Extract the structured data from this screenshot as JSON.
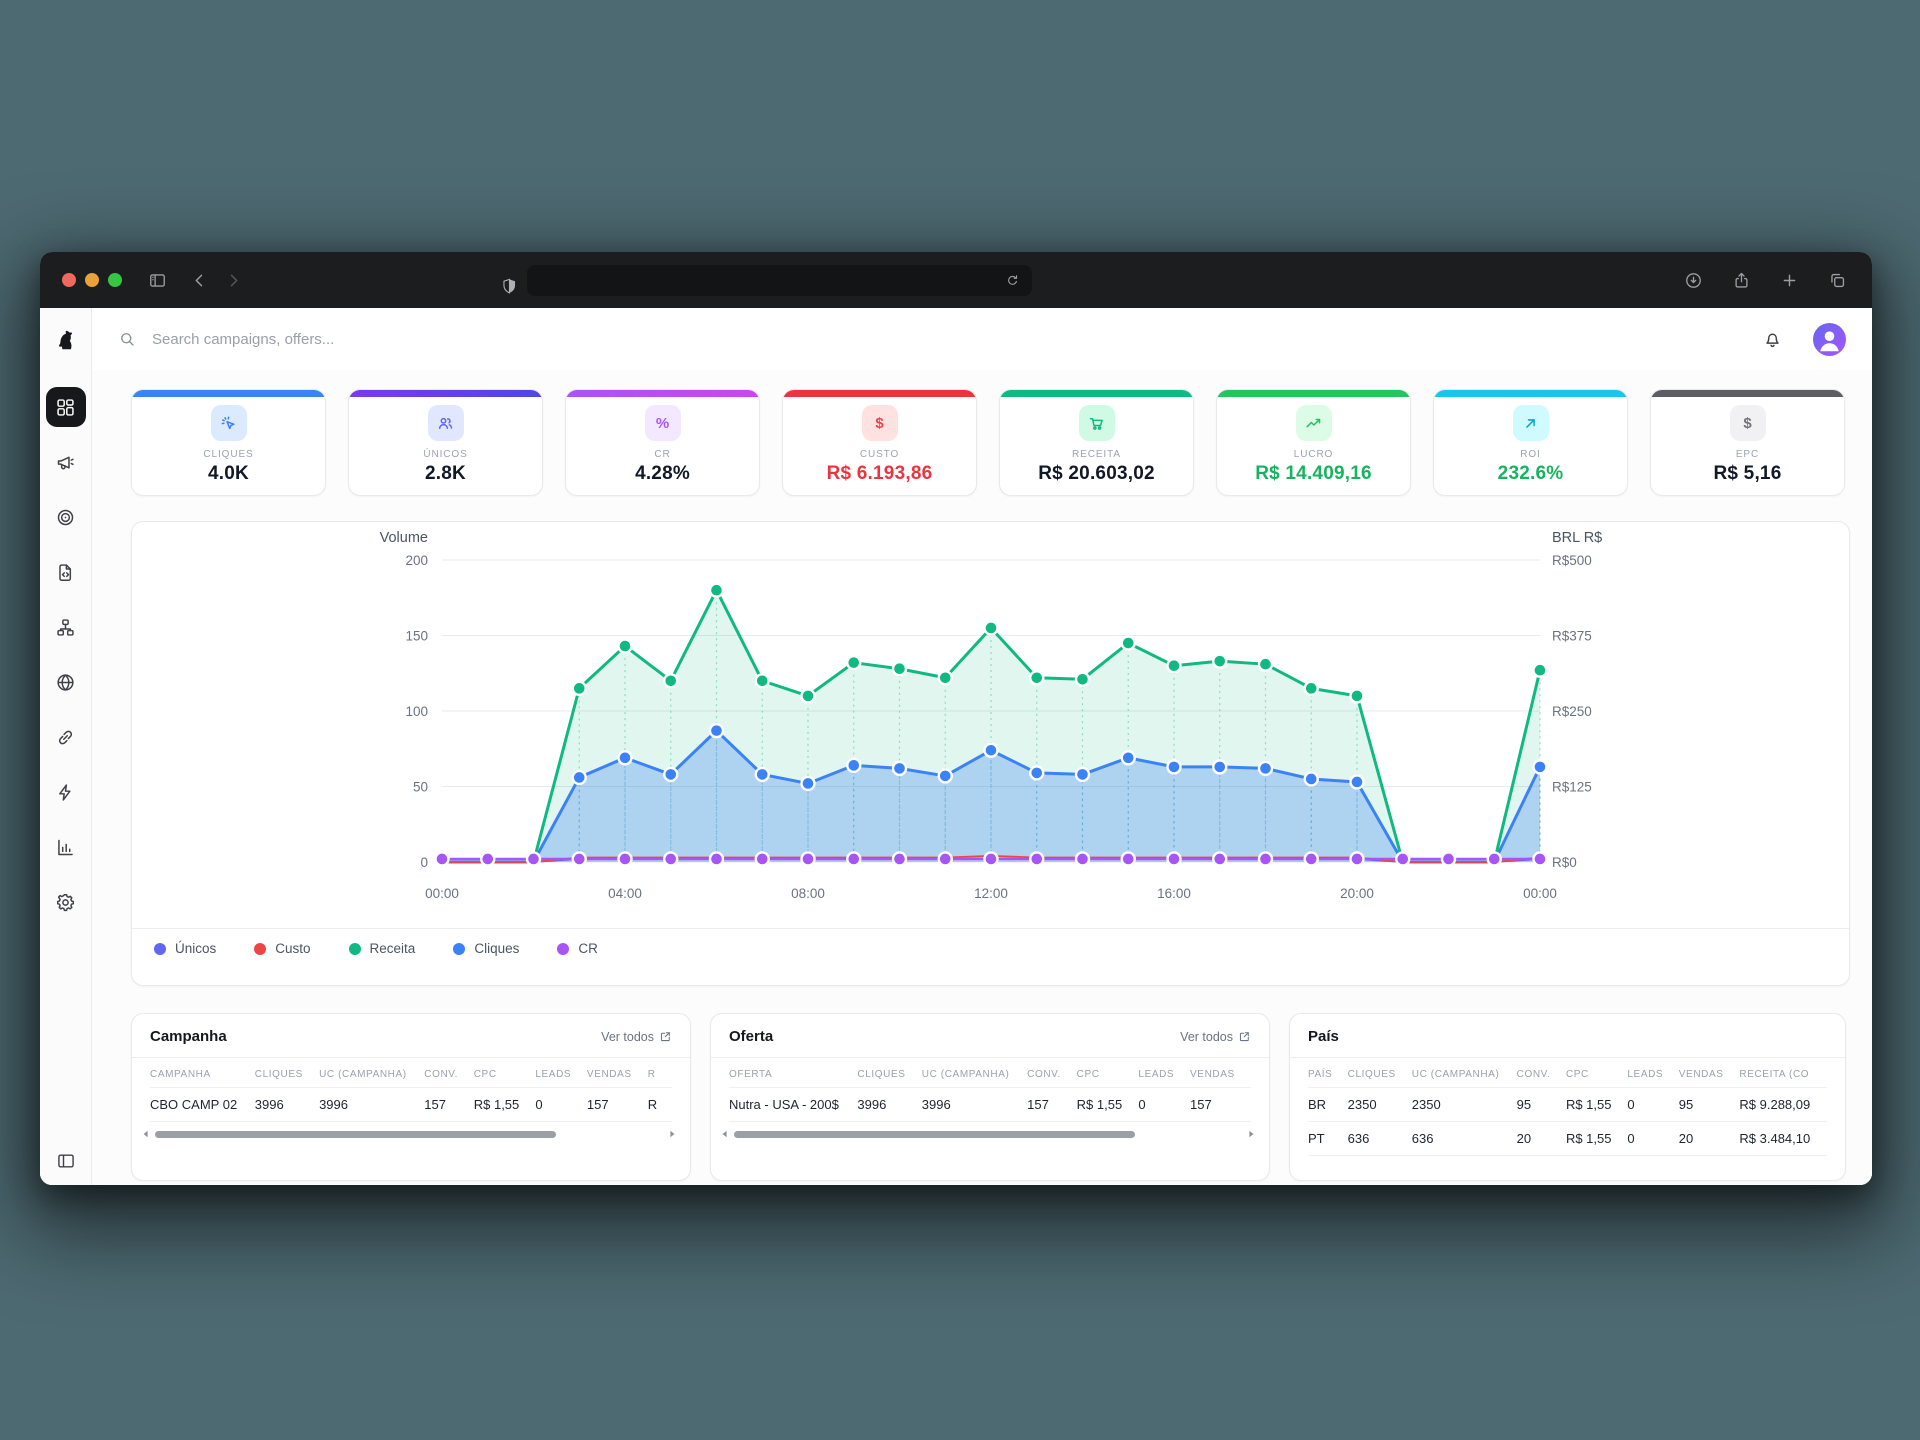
{
  "header": {
    "search_placeholder": "Search campaigns, offers..."
  },
  "sidebar": {
    "items": [
      {
        "id": "dashboard",
        "icon": "grid",
        "active": true
      },
      {
        "id": "campaigns",
        "icon": "megaphone",
        "active": false
      },
      {
        "id": "offers",
        "icon": "target",
        "active": false
      },
      {
        "id": "landers",
        "icon": "file-code",
        "active": false
      },
      {
        "id": "flows",
        "icon": "network",
        "active": false
      },
      {
        "id": "domains",
        "icon": "globe",
        "active": false
      },
      {
        "id": "links",
        "icon": "link",
        "active": false
      },
      {
        "id": "automation",
        "icon": "zap",
        "active": false
      },
      {
        "id": "reports",
        "icon": "bar-chart",
        "active": false
      },
      {
        "id": "settings",
        "icon": "gear",
        "active": false
      }
    ]
  },
  "kpis": [
    {
      "label": "CLIQUES",
      "value": "4.0K",
      "accent": "#3b82f6",
      "accent2": "#3b82f6",
      "tint": "#dbeafe",
      "icon_color": "#3b82f6",
      "icon": "cursor-click",
      "glyph": "",
      "value_color": "#111827"
    },
    {
      "label": "ÚNICOS",
      "value": "2.8K",
      "accent": "#7c3aed",
      "accent2": "#4f46e5",
      "tint": "#e0e7ff",
      "icon_color": "#6366f1",
      "icon": "users",
      "glyph": "",
      "value_color": "#111827"
    },
    {
      "label": "CR",
      "value": "4.28%",
      "accent": "#a855f7",
      "accent2": "#c946ef",
      "tint": "#f3e8ff",
      "icon_color": "#a855f7",
      "icon": "",
      "glyph": "%",
      "value_color": "#111827"
    },
    {
      "label": "CUSTO",
      "value": "R$ 6.193,86",
      "accent": "#ee3340",
      "accent2": "#ee3340",
      "tint": "#fee2e2",
      "icon_color": "#ef4444",
      "icon": "",
      "glyph": "$",
      "value_color": "#ee3340"
    },
    {
      "label": "RECEITA",
      "value": "R$ 20.603,02",
      "accent": "#10b981",
      "accent2": "#10b981",
      "tint": "#d1fae5",
      "icon_color": "#10b981",
      "icon": "cart",
      "glyph": "",
      "value_color": "#111827"
    },
    {
      "label": "LUCRO",
      "value": "R$ 14.409,16",
      "accent": "#22c55e",
      "accent2": "#22c55e",
      "tint": "#dcfce7",
      "icon_color": "#22c55e",
      "icon": "trending-up",
      "glyph": "",
      "value_color": "#17b35f"
    },
    {
      "label": "ROI",
      "value": "232.6%",
      "accent": "#19c6ea",
      "accent2": "#19c6ea",
      "tint": "#cffafe",
      "icon_color": "#0ea5c9",
      "icon": "arrow-up-right",
      "glyph": "",
      "value_color": "#17b35f"
    },
    {
      "label": "EPC",
      "value": "R$ 5,16",
      "accent": "#5d5d65",
      "accent2": "#5d5d65",
      "tint": "#f1f1f3",
      "icon_color": "#73737b",
      "icon": "",
      "glyph": "$",
      "value_color": "#111827"
    }
  ],
  "chart_data": {
    "type": "area",
    "x_labels": [
      "00:00",
      "04:00",
      "08:00",
      "12:00",
      "16:00",
      "20:00",
      "00:00"
    ],
    "x_label_every": 4,
    "left_axis": {
      "title": "Volume",
      "ticks": [
        "0",
        "50",
        "100",
        "150",
        "200"
      ],
      "max": 200
    },
    "right_axis": {
      "title": "BRL R$",
      "ticks": [
        "R$0",
        "R$125",
        "R$250",
        "R$375",
        "R$500"
      ]
    },
    "grid": true,
    "legend_position": "bottom",
    "series": [
      {
        "name": "Únicos",
        "color": "#6366f1",
        "dots": false,
        "values": [
          0,
          0,
          0,
          2,
          2,
          2,
          2,
          2,
          2,
          2,
          2,
          2,
          2,
          2,
          2,
          2,
          2,
          2,
          2,
          2,
          2,
          0,
          0,
          0,
          2
        ]
      },
      {
        "name": "Custo",
        "color": "#ef4444",
        "dots": false,
        "values": [
          0,
          0,
          0,
          3,
          3,
          3,
          3,
          3,
          3,
          3,
          3,
          3,
          4,
          3,
          3,
          3,
          3,
          3,
          3,
          3,
          3,
          0,
          0,
          0,
          3
        ]
      },
      {
        "name": "Receita",
        "color": "#10b981",
        "dots": true,
        "area": "rgba(16,185,129,.13)",
        "values": [
          0,
          0,
          0,
          115,
          143,
          120,
          180,
          120,
          110,
          132,
          128,
          122,
          155,
          122,
          121,
          145,
          130,
          133,
          131,
          115,
          110,
          0,
          0,
          0,
          127
        ]
      },
      {
        "name": "Cliques",
        "color": "#3b82f6",
        "dots": true,
        "area": "rgba(59,130,246,.30)",
        "values": [
          0,
          0,
          0,
          56,
          69,
          58,
          87,
          58,
          52,
          64,
          62,
          57,
          74,
          59,
          58,
          69,
          63,
          63,
          62,
          55,
          53,
          0,
          0,
          0,
          63
        ]
      },
      {
        "name": "CR",
        "color": "#a855f7",
        "dots": true,
        "dots_all": true,
        "values": [
          2,
          2,
          2,
          2,
          2,
          2,
          2,
          2,
          2,
          2,
          2,
          2,
          2,
          2,
          2,
          2,
          2,
          2,
          2,
          2,
          2,
          2,
          2,
          2,
          2
        ]
      }
    ]
  },
  "tables": [
    {
      "title": "Campanha",
      "link": "Ver todos",
      "scrollbar": true,
      "columns": [
        "CAMPANHA",
        "CLIQUES",
        "UC (CAMPANHA)",
        "CONV.",
        "CPC",
        "LEADS",
        "VENDAS",
        "R"
      ],
      "rows": [
        [
          "CBO CAMP 02",
          "3996",
          "3996",
          "157",
          "R$ 1,55",
          "0",
          "157",
          "R"
        ]
      ]
    },
    {
      "title": "Oferta",
      "link": "Ver todos",
      "scrollbar": true,
      "columns": [
        "OFERTA",
        "CLIQUES",
        "UC (CAMPANHA)",
        "CONV.",
        "CPC",
        "LEADS",
        "VENDAS"
      ],
      "rows": [
        [
          "Nutra - USA - 200$",
          "3996",
          "3996",
          "157",
          "R$ 1,55",
          "0",
          "157"
        ]
      ]
    },
    {
      "title": "País",
      "link": "",
      "scrollbar": false,
      "columns": [
        "PAÍS",
        "CLIQUES",
        "UC (CAMPANHA)",
        "CONV.",
        "CPC",
        "LEADS",
        "VENDAS",
        "RECEITA (CO"
      ],
      "rows": [
        [
          "BR",
          "2350",
          "2350",
          "95",
          "R$ 1,55",
          "0",
          "95",
          "R$ 9.288,09"
        ],
        [
          "PT",
          "636",
          "636",
          "20",
          "R$ 1,55",
          "0",
          "20",
          "R$ 3.484,10"
        ]
      ]
    }
  ]
}
